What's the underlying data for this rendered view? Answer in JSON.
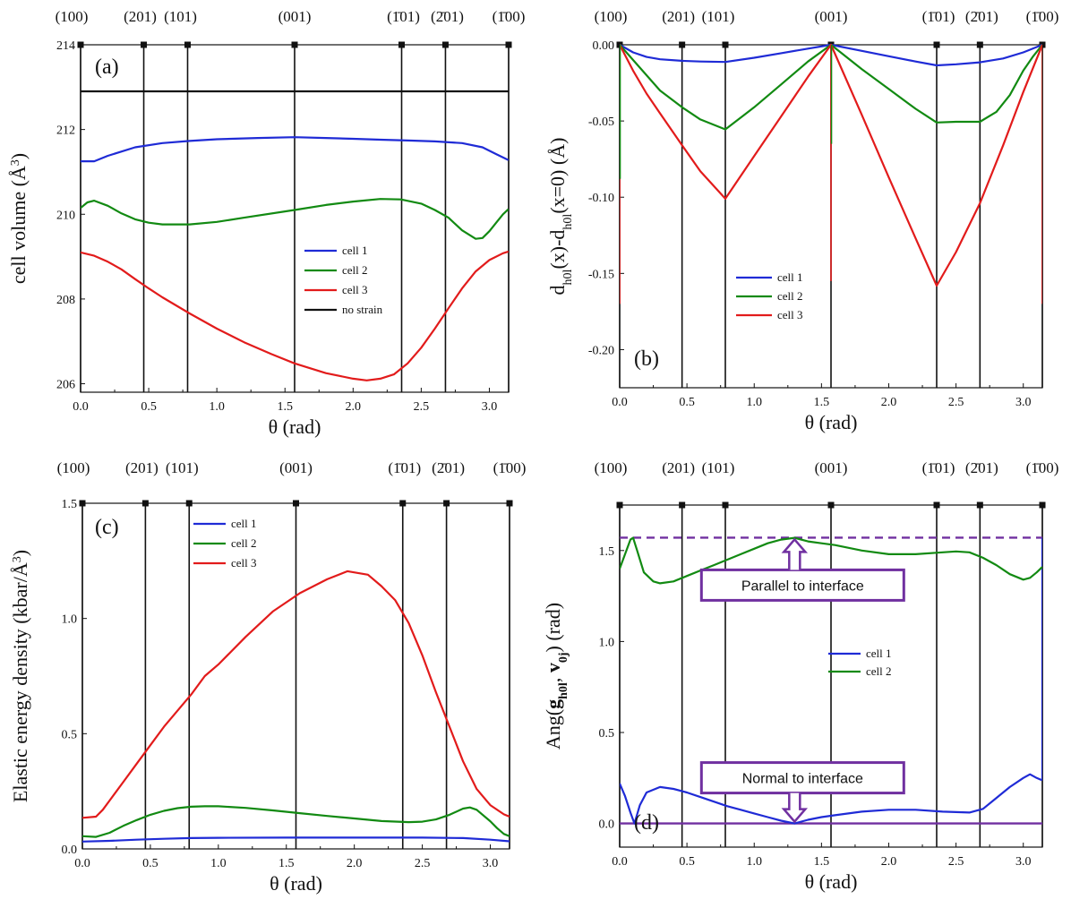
{
  "chart_data": [
    {
      "type": "line",
      "panel_label": "(a)",
      "xlabel": "θ (rad)",
      "ylabel": "cell volume (Å³)",
      "ylabel_main": "cell volume (Å",
      "ylabel_sup": "3",
      "ylabel_tail": ")",
      "xlim": [
        0,
        3.1416
      ],
      "ylim": [
        205.8,
        214
      ],
      "xticks": [
        "0.0",
        "0.5",
        "1.0",
        "1.5",
        "2.0",
        "2.5",
        "3.0"
      ],
      "yticks": [
        "206",
        "208",
        "210",
        "212",
        "214"
      ],
      "ytick_values": [
        206,
        208,
        210,
        212,
        214
      ],
      "legend_position": "center-right",
      "orientation_markers": [
        {
          "label": "(100)",
          "theta": 0.0
        },
        {
          "label": "(201)",
          "theta": 0.4636
        },
        {
          "label": "(101)",
          "theta": 0.7854
        },
        {
          "label": "(001)",
          "theta": 1.5708
        },
        {
          "label": "(1̄01)",
          "theta": 2.3562
        },
        {
          "label": "(2̄01)",
          "theta": 2.6779
        },
        {
          "label": "(1̄00)",
          "theta": 3.1416
        }
      ],
      "series": [
        {
          "name": "cell 1",
          "color": "#1f2bd6",
          "x": [
            0,
            0.1,
            0.2,
            0.4,
            0.6,
            0.8,
            1.0,
            1.3,
            1.57,
            1.8,
            2.0,
            2.2,
            2.4,
            2.6,
            2.8,
            2.95,
            3.05,
            3.14
          ],
          "y": [
            211.25,
            211.25,
            211.38,
            211.58,
            211.68,
            211.73,
            211.77,
            211.8,
            211.82,
            211.8,
            211.78,
            211.76,
            211.74,
            211.72,
            211.68,
            211.58,
            211.42,
            211.28
          ]
        },
        {
          "name": "cell 2",
          "color": "#128a12",
          "x": [
            0,
            0.05,
            0.1,
            0.2,
            0.3,
            0.4,
            0.5,
            0.6,
            0.8,
            1.0,
            1.2,
            1.57,
            1.8,
            2.0,
            2.2,
            2.35,
            2.5,
            2.6,
            2.7,
            2.8,
            2.9,
            2.95,
            3.0,
            3.05,
            3.1,
            3.14
          ],
          "y": [
            210.15,
            210.28,
            210.32,
            210.2,
            210.02,
            209.88,
            209.8,
            209.76,
            209.76,
            209.82,
            209.92,
            210.1,
            210.22,
            210.3,
            210.36,
            210.35,
            210.25,
            210.1,
            209.92,
            209.62,
            209.42,
            209.44,
            209.6,
            209.8,
            210.0,
            210.12
          ]
        },
        {
          "name": "cell 3",
          "color": "#e21b1b",
          "x": [
            0,
            0.1,
            0.2,
            0.3,
            0.4,
            0.5,
            0.6,
            0.7,
            0.8,
            1.0,
            1.2,
            1.4,
            1.57,
            1.8,
            2.0,
            2.1,
            2.2,
            2.3,
            2.4,
            2.5,
            2.6,
            2.7,
            2.8,
            2.9,
            3.0,
            3.1,
            3.14
          ],
          "y": [
            209.1,
            209.02,
            208.88,
            208.7,
            208.47,
            208.25,
            208.04,
            207.85,
            207.66,
            207.3,
            206.98,
            206.7,
            206.48,
            206.25,
            206.12,
            206.08,
            206.12,
            206.22,
            206.48,
            206.85,
            207.3,
            207.78,
            208.25,
            208.65,
            208.92,
            209.08,
            209.12
          ]
        },
        {
          "name": "no strain",
          "color": "#111111",
          "x": [
            0,
            3.1416
          ],
          "y": [
            212.9,
            212.9
          ]
        }
      ]
    },
    {
      "type": "line",
      "panel_label": "(b)",
      "xlabel": "θ (rad)",
      "ylabel": "d_h0l(x)-d_h0l(x=0) (Å)",
      "ylabel_p1": "d",
      "ylabel_sub1": "h0l",
      "ylabel_p2": "(x)-d",
      "ylabel_sub2": "h0l",
      "ylabel_p3": "(x=0) (Å)",
      "xlim": [
        0,
        3.1416
      ],
      "ylim": [
        -0.225,
        0.0
      ],
      "xticks": [
        "0.0",
        "0.5",
        "1.0",
        "1.5",
        "2.0",
        "2.5",
        "3.0"
      ],
      "yticks": [
        "-0.20",
        "-0.15",
        "-0.10",
        "-0.05",
        "0.00"
      ],
      "ytick_values": [
        -0.2,
        -0.15,
        -0.1,
        -0.05,
        0.0
      ],
      "legend_position": "bottom-left",
      "orientation_markers": [
        {
          "label": "(100)",
          "theta": 0.0
        },
        {
          "label": "(201)",
          "theta": 0.4636
        },
        {
          "label": "(101)",
          "theta": 0.7854
        },
        {
          "label": "(001)",
          "theta": 1.5708
        },
        {
          "label": "(1̄01)",
          "theta": 2.3562
        },
        {
          "label": "(2̄01)",
          "theta": 2.6779
        },
        {
          "label": "(1̄00)",
          "theta": 3.1416
        }
      ],
      "series": [
        {
          "name": "cell 1",
          "color": "#1f2bd6",
          "x": [
            0,
            0.1,
            0.2,
            0.3,
            0.46,
            0.6,
            0.7854,
            1.0,
            1.2,
            1.4,
            1.5708,
            1.8,
            2.0,
            2.2,
            2.3562,
            2.5,
            2.6779,
            2.85,
            3.0,
            3.1416
          ],
          "y": [
            0,
            -0.005,
            -0.008,
            -0.0095,
            -0.0105,
            -0.011,
            -0.0113,
            -0.0085,
            -0.0055,
            -0.0025,
            0,
            -0.004,
            -0.0075,
            -0.011,
            -0.0135,
            -0.0128,
            -0.0115,
            -0.009,
            -0.005,
            0
          ]
        },
        {
          "name": "cell 2",
          "color": "#128a12",
          "x": [
            0,
            0.1,
            0.2,
            0.3,
            0.4636,
            0.6,
            0.7854,
            1.0,
            1.2,
            1.4,
            1.5708,
            1.8,
            2.0,
            2.2,
            2.3562,
            2.5,
            2.6779,
            2.8,
            2.9,
            3.0,
            3.07,
            3.1416
          ],
          "y": [
            0,
            -0.01,
            -0.02,
            -0.03,
            -0.041,
            -0.049,
            -0.0555,
            -0.041,
            -0.026,
            -0.011,
            0,
            -0.016,
            -0.029,
            -0.042,
            -0.051,
            -0.0505,
            -0.0505,
            -0.044,
            -0.033,
            -0.017,
            -0.008,
            0
          ]
        },
        {
          "name": "cell 3",
          "color": "#e21b1b",
          "x": [
            0,
            0.1,
            0.2,
            0.3,
            0.4636,
            0.6,
            0.7854,
            1.0,
            1.2,
            1.4,
            1.5708,
            1.8,
            2.0,
            2.2,
            2.3562,
            2.5,
            2.6779,
            2.85,
            3.0,
            3.1416
          ],
          "y": [
            0,
            -0.017,
            -0.032,
            -0.045,
            -0.066,
            -0.083,
            -0.101,
            -0.073,
            -0.047,
            -0.021,
            0,
            -0.046,
            -0.087,
            -0.127,
            -0.158,
            -0.136,
            -0.104,
            -0.066,
            -0.031,
            0
          ]
        }
      ]
    },
    {
      "type": "line",
      "panel_label": "(c)",
      "xlabel": "θ (rad)",
      "ylabel": "Elastic energy density (kbar/Å³)",
      "ylabel_main": "Elastic energy density (kbar/Å",
      "ylabel_sup": "3",
      "ylabel_tail": ")",
      "xlim": [
        0,
        3.1416
      ],
      "ylim": [
        0,
        1.5
      ],
      "xticks": [
        "0.0",
        "0.5",
        "1.0",
        "1.5",
        "2.0",
        "2.5",
        "3.0"
      ],
      "yticks": [
        "0.0",
        "0.5",
        "1.0",
        "1.5"
      ],
      "ytick_values": [
        0,
        0.5,
        1.0,
        1.5
      ],
      "legend_position": "top-left",
      "orientation_markers": [
        {
          "label": "(100)",
          "theta": 0.0
        },
        {
          "label": "(201)",
          "theta": 0.4636
        },
        {
          "label": "(101)",
          "theta": 0.7854
        },
        {
          "label": "(001)",
          "theta": 1.5708
        },
        {
          "label": "(1̄01)",
          "theta": 2.3562
        },
        {
          "label": "(2̄01)",
          "theta": 2.6779
        },
        {
          "label": "(1̄00)",
          "theta": 3.1416
        }
      ],
      "series": [
        {
          "name": "cell 1",
          "color": "#1f2bd6",
          "x": [
            0,
            0.2,
            0.4,
            0.6,
            0.8,
            1.0,
            1.5,
            2.0,
            2.5,
            2.8,
            3.0,
            3.1416
          ],
          "y": [
            0.032,
            0.035,
            0.04,
            0.044,
            0.047,
            0.048,
            0.049,
            0.049,
            0.049,
            0.047,
            0.04,
            0.033
          ]
        },
        {
          "name": "cell 2",
          "color": "#128a12",
          "x": [
            0,
            0.1,
            0.2,
            0.3,
            0.4,
            0.5,
            0.6,
            0.7,
            0.8,
            0.9,
            1.0,
            1.2,
            1.4,
            1.6,
            1.8,
            2.0,
            2.2,
            2.4,
            2.5,
            2.6,
            2.7,
            2.8,
            2.85,
            2.9,
            3.0,
            3.05,
            3.1,
            3.1416
          ],
          "y": [
            0.055,
            0.052,
            0.07,
            0.1,
            0.125,
            0.148,
            0.165,
            0.177,
            0.183,
            0.185,
            0.185,
            0.178,
            0.167,
            0.155,
            0.143,
            0.132,
            0.121,
            0.116,
            0.118,
            0.128,
            0.148,
            0.175,
            0.18,
            0.17,
            0.12,
            0.09,
            0.065,
            0.055
          ]
        },
        {
          "name": "cell 3",
          "color": "#e21b1b",
          "x": [
            0,
            0.1,
            0.15,
            0.2,
            0.3,
            0.4,
            0.5,
            0.6,
            0.7,
            0.8,
            0.9,
            1.0,
            1.2,
            1.4,
            1.6,
            1.8,
            1.95,
            2.1,
            2.2,
            2.3,
            2.4,
            2.5,
            2.6,
            2.7,
            2.8,
            2.9,
            3.0,
            3.1,
            3.1416
          ],
          "y": [
            0.135,
            0.14,
            0.17,
            0.21,
            0.29,
            0.37,
            0.45,
            0.53,
            0.6,
            0.67,
            0.75,
            0.8,
            0.92,
            1.03,
            1.11,
            1.17,
            1.205,
            1.19,
            1.14,
            1.08,
            0.98,
            0.84,
            0.68,
            0.53,
            0.38,
            0.26,
            0.19,
            0.15,
            0.14
          ]
        }
      ]
    },
    {
      "type": "line",
      "panel_label": "(d)",
      "xlabel": "θ (rad)",
      "ylabel": "Ang(g_h0l, v_0j) (rad)",
      "ylabel_p1": "Ang(",
      "ylabel_b1": "g",
      "ylabel_sub1": "h0l",
      "ylabel_p2": ", ",
      "ylabel_b2": "v",
      "ylabel_sub2": "0j",
      "ylabel_p3": ") (rad)",
      "xlim": [
        0,
        3.1416
      ],
      "ylim": [
        -0.13,
        1.75
      ],
      "xticks": [
        "0.0",
        "0.5",
        "1.0",
        "1.5",
        "2.0",
        "2.5",
        "3.0"
      ],
      "yticks": [
        "0.0",
        "0.5",
        "1.0",
        "1.5"
      ],
      "ytick_values": [
        0,
        0.5,
        1.0,
        1.5
      ],
      "legend_position": "center-right",
      "orientation_markers": [
        {
          "label": "(100)",
          "theta": 0.0
        },
        {
          "label": "(201)",
          "theta": 0.4636
        },
        {
          "label": "(101)",
          "theta": 0.7854
        },
        {
          "label": "(001)",
          "theta": 1.5708
        },
        {
          "label": "(1̄01)",
          "theta": 2.3562
        },
        {
          "label": "(2̄01)",
          "theta": 2.6779
        },
        {
          "label": "(1̄00)",
          "theta": 3.1416
        }
      ],
      "reference_lines": [
        {
          "name": "parallel",
          "y": 1.5708,
          "color": "#7030a0",
          "style": "dashed"
        },
        {
          "name": "normal",
          "y": 0.0,
          "color": "#7030a0",
          "style": "solid"
        }
      ],
      "annotations": [
        {
          "text": "Parallel to interface",
          "color": "#7030a0",
          "target_theta": 1.3,
          "target_y": 1.5708,
          "side": "below"
        },
        {
          "text": "Normal to interface",
          "color": "#7030a0",
          "target_theta": 1.3,
          "target_y": 0.0,
          "side": "above"
        }
      ],
      "series": [
        {
          "name": "cell 1",
          "color": "#1f2bd6",
          "x": [
            0,
            0.04,
            0.08,
            0.11,
            0.15,
            0.2,
            0.3,
            0.4,
            0.5,
            0.6,
            0.7,
            0.8,
            0.9,
            1.0,
            1.1,
            1.2,
            1.3,
            1.4,
            1.5,
            1.6,
            1.8,
            2.0,
            2.2,
            2.4,
            2.6,
            2.7,
            2.8,
            2.9,
            3.0,
            3.05,
            3.1,
            3.13,
            3.1416,
            3.1416
          ],
          "y": [
            0.22,
            0.15,
            0.06,
            0.0,
            0.1,
            0.17,
            0.2,
            0.19,
            0.17,
            0.145,
            0.12,
            0.095,
            0.075,
            0.055,
            0.035,
            0.015,
            0.0,
            0.02,
            0.035,
            0.045,
            0.065,
            0.075,
            0.075,
            0.065,
            0.06,
            0.08,
            0.14,
            0.2,
            0.25,
            0.27,
            0.25,
            0.24,
            0.24,
            1.57
          ]
        },
        {
          "name": "cell 2",
          "color": "#128a12",
          "x": [
            0,
            0.04,
            0.08,
            0.1,
            0.13,
            0.18,
            0.25,
            0.3,
            0.4,
            0.5,
            0.6,
            0.7,
            0.8,
            0.9,
            1.0,
            1.1,
            1.2,
            1.3,
            1.4,
            1.5,
            1.6,
            1.8,
            2.0,
            2.2,
            2.4,
            2.5,
            2.6,
            2.7,
            2.8,
            2.9,
            3.0,
            3.05,
            3.1,
            3.1416
          ],
          "y": [
            1.4,
            1.48,
            1.56,
            1.57,
            1.5,
            1.38,
            1.33,
            1.32,
            1.33,
            1.36,
            1.39,
            1.42,
            1.45,
            1.48,
            1.51,
            1.54,
            1.56,
            1.57,
            1.55,
            1.54,
            1.53,
            1.5,
            1.48,
            1.48,
            1.49,
            1.495,
            1.49,
            1.46,
            1.42,
            1.37,
            1.34,
            1.35,
            1.38,
            1.41
          ]
        }
      ]
    }
  ]
}
